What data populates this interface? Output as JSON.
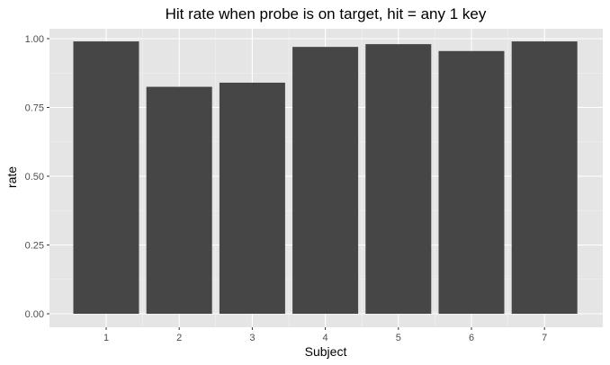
{
  "chart_data": {
    "type": "bar",
    "title": "Hit rate when probe is on target, hit = any 1 key",
    "xlabel": "Subject",
    "ylabel": "rate",
    "categories": [
      "1",
      "2",
      "3",
      "4",
      "5",
      "6",
      "7"
    ],
    "values": [
      0.99,
      0.825,
      0.84,
      0.97,
      0.98,
      0.955,
      0.99
    ],
    "ylim": [
      0,
      1.0
    ],
    "yticks": [
      0.0,
      0.25,
      0.5,
      0.75,
      1.0
    ],
    "ytick_labels": [
      "0.00",
      "0.25",
      "0.50",
      "0.75",
      "1.00"
    ],
    "grid": true,
    "legend": "none"
  },
  "colors": {
    "panel_background": "#e5e5e5",
    "grid_major": "#ffffff",
    "grid_minor": "#f2f2f2",
    "bar_fill": "#464646",
    "tick_mark": "#333333"
  }
}
